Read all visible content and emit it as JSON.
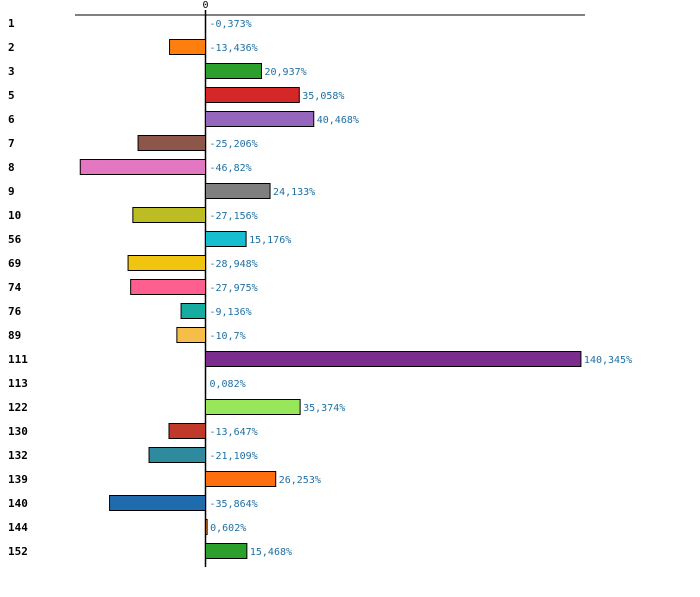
{
  "chart_data": {
    "type": "bar",
    "orientation": "horizontal",
    "title": "",
    "xlabel": "",
    "ylabel": "",
    "grid": false,
    "xlim": [
      -52,
      146
    ],
    "zero_tick_label": "0",
    "categories": [
      "1",
      "2",
      "3",
      "5",
      "6",
      "7",
      "8",
      "9",
      "10",
      "56",
      "69",
      "74",
      "76",
      "89",
      "111",
      "113",
      "122",
      "130",
      "132",
      "139",
      "140",
      "144",
      "152"
    ],
    "values": [
      -0.373,
      -13.436,
      20.937,
      35.058,
      40.468,
      -25.206,
      -46.82,
      24.133,
      -27.156,
      15.176,
      -28.948,
      -27.975,
      -9.136,
      -10.7,
      140.345,
      0.082,
      35.374,
      -13.647,
      -21.109,
      26.253,
      -35.864,
      0.602,
      15.468
    ],
    "value_labels": [
      "-0,373%",
      "-13,436%",
      "20,937%",
      "35,058%",
      "40,468%",
      "-25,206%",
      "-46,82%",
      "24,133%",
      "-27,156%",
      "15,176%",
      "-28,948%",
      "-27,975%",
      "-9,136%",
      "-10,7%",
      "140,345%",
      "0,082%",
      "35,374%",
      "-13,647%",
      "-21,109%",
      "26,253%",
      "-35,864%",
      "0,602%",
      "15,468%"
    ],
    "colors": [
      "#1f77b4",
      "#ff7f0e",
      "#2ca02c",
      "#d62728",
      "#9467bd",
      "#8c564b",
      "#e377c2",
      "#7f7f7f",
      "#bcbd22",
      "#17becf",
      "#f1c40f",
      "#ff5f8f",
      "#17aca0",
      "#f7bd4a",
      "#7b2d8e",
      "#1f77b4",
      "#98e65a",
      "#c0392b",
      "#2e8b9e",
      "#ff6e0e",
      "#1f6bad",
      "#ff7f0e",
      "#2ca02c"
    ]
  }
}
